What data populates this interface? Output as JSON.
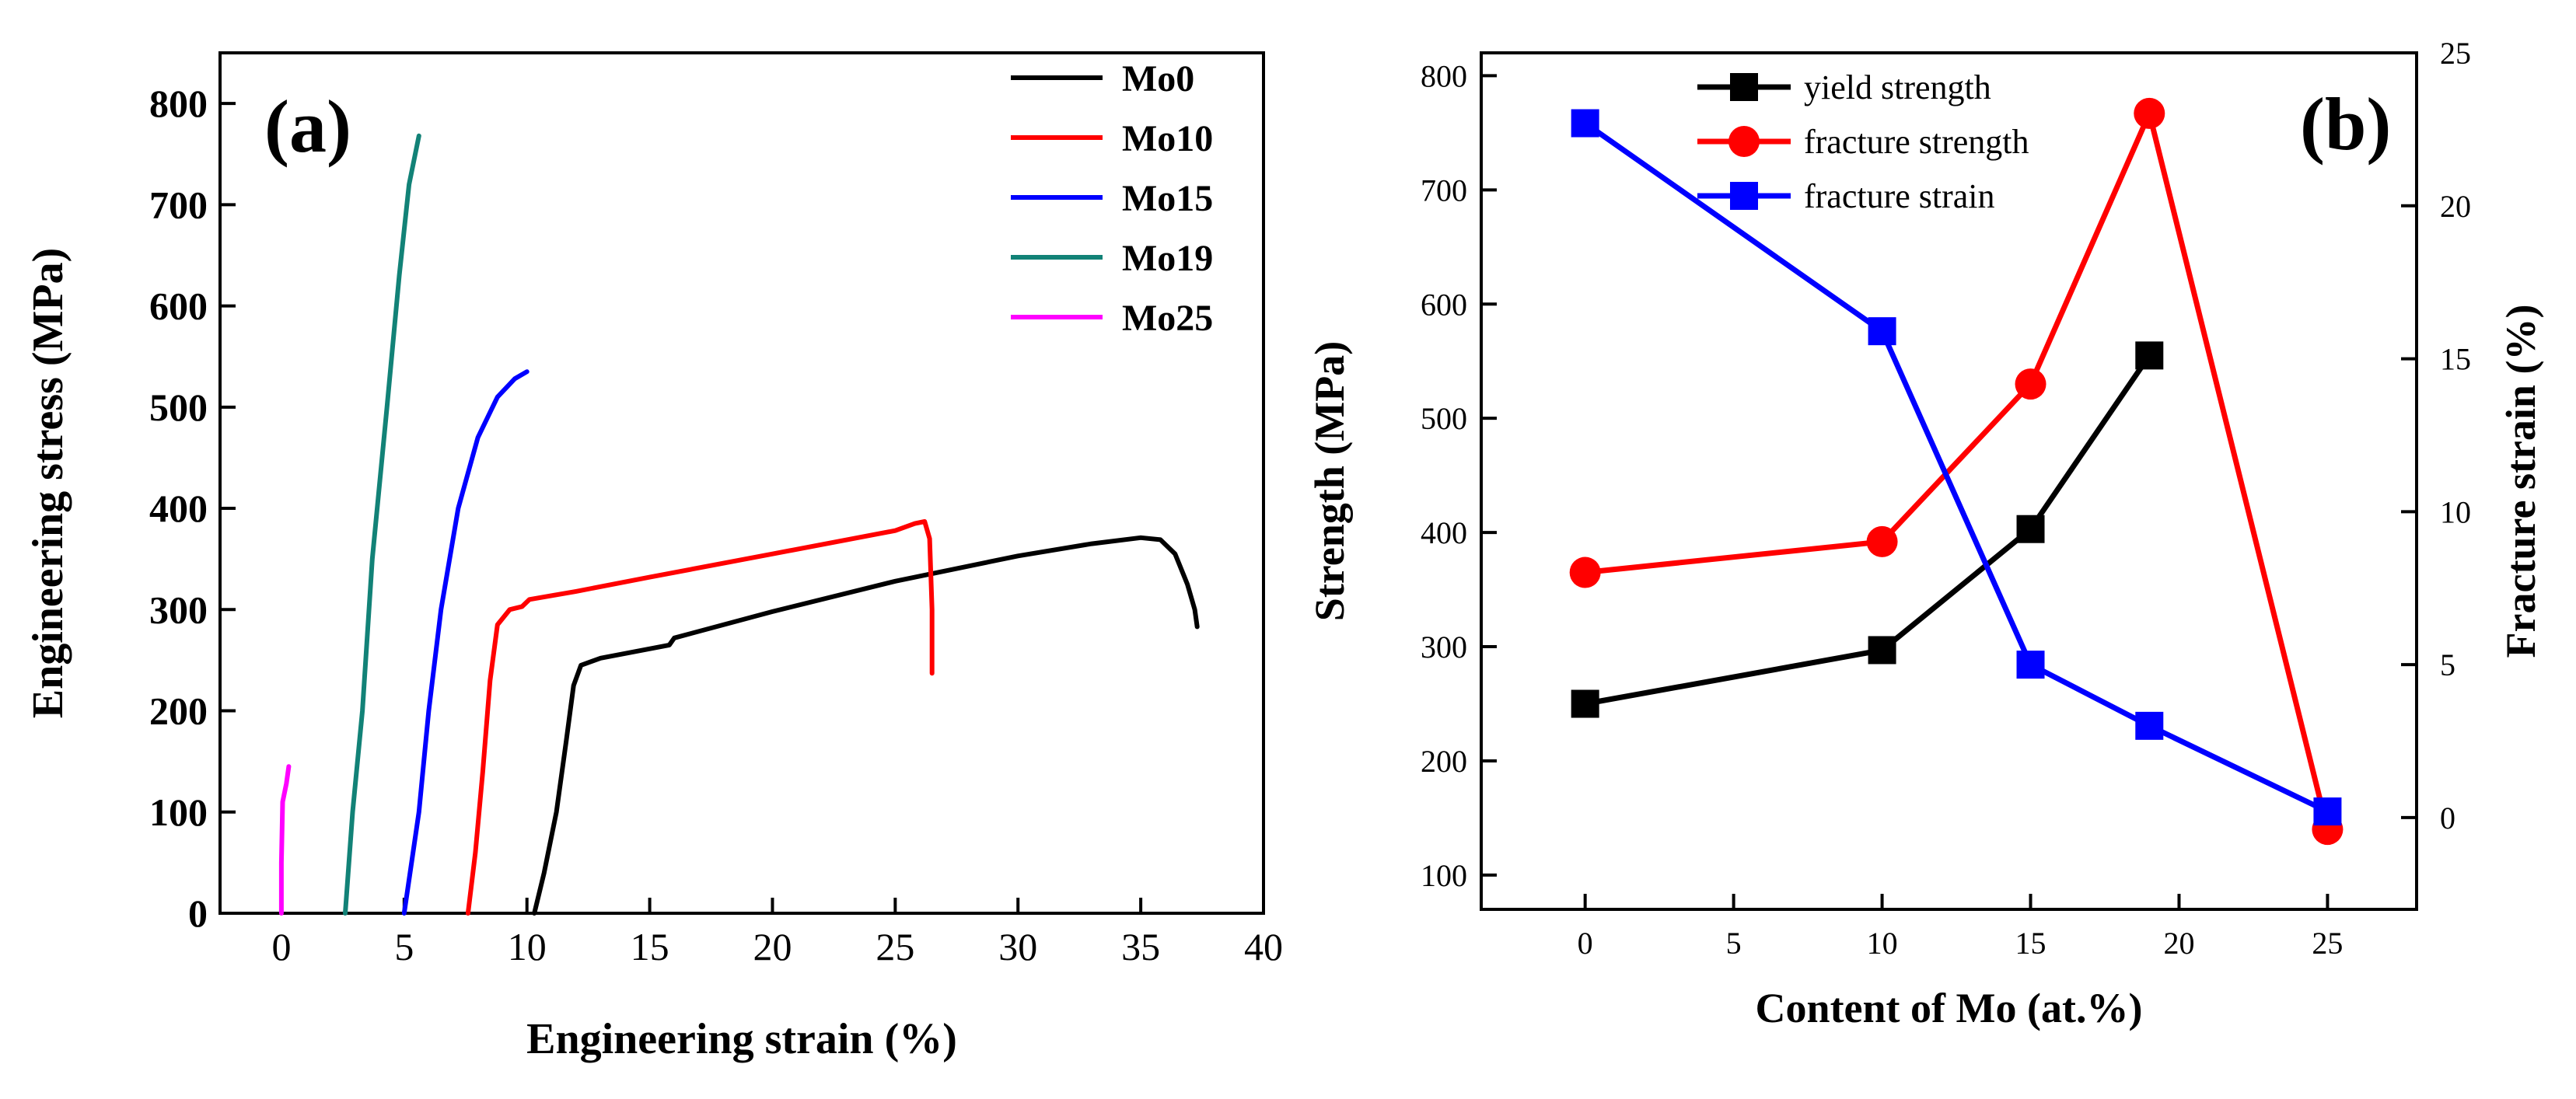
{
  "chart_data": [
    {
      "id": "a",
      "type": "line",
      "panel_label": "(a)",
      "xlabel": "Engineering strain (%)",
      "ylabel": "Engineering stress (MPa)",
      "xlim": [
        -2.5,
        40
      ],
      "ylim": [
        0,
        850
      ],
      "xticks": [
        0,
        5,
        10,
        15,
        20,
        25,
        30,
        35,
        40
      ],
      "yticks": [
        0,
        100,
        200,
        300,
        400,
        500,
        600,
        700,
        800
      ],
      "legend_position": "top-right",
      "series": [
        {
          "name": "Mo0",
          "color": "#000000",
          "points": [
            [
              10.3,
              0
            ],
            [
              10.7,
              40
            ],
            [
              11.2,
              100
            ],
            [
              11.6,
              170
            ],
            [
              11.9,
              225
            ],
            [
              12.2,
              245
            ],
            [
              13,
              252
            ],
            [
              15.8,
              265
            ],
            [
              16,
              272
            ],
            [
              20,
              298
            ],
            [
              25,
              328
            ],
            [
              30,
              353
            ],
            [
              33,
              365
            ],
            [
              35,
              371
            ],
            [
              35.8,
              369
            ],
            [
              36.4,
              355
            ],
            [
              36.9,
              325
            ],
            [
              37.2,
              300
            ],
            [
              37.3,
              283
            ]
          ]
        },
        {
          "name": "Mo10",
          "color": "#ff0000",
          "points": [
            [
              7.6,
              0
            ],
            [
              7.9,
              60
            ],
            [
              8.2,
              140
            ],
            [
              8.5,
              230
            ],
            [
              8.8,
              285
            ],
            [
              9.3,
              300
            ],
            [
              9.8,
              303
            ],
            [
              10.1,
              310
            ],
            [
              12,
              318
            ],
            [
              15,
              332
            ],
            [
              20,
              355
            ],
            [
              25,
              378
            ],
            [
              25.8,
              385
            ],
            [
              26.2,
              387
            ],
            [
              26.4,
              370
            ],
            [
              26.5,
              300
            ],
            [
              26.5,
              237
            ]
          ]
        },
        {
          "name": "Mo15",
          "color": "#0000ff",
          "points": [
            [
              5,
              0
            ],
            [
              5.3,
              50
            ],
            [
              5.6,
              100
            ],
            [
              6,
              200
            ],
            [
              6.5,
              300
            ],
            [
              7.2,
              400
            ],
            [
              8,
              470
            ],
            [
              8.8,
              510
            ],
            [
              9.5,
              528
            ],
            [
              10,
              535
            ]
          ]
        },
        {
          "name": "Mo19",
          "color": "#128277",
          "points": [
            [
              2.6,
              0
            ],
            [
              2.9,
              100
            ],
            [
              3.3,
              200
            ],
            [
              3.7,
              350
            ],
            [
              4.3,
              500
            ],
            [
              4.8,
              630
            ],
            [
              5.2,
              720
            ],
            [
              5.6,
              768
            ]
          ]
        },
        {
          "name": "Mo25",
          "color": "#ff00ff",
          "points": [
            [
              0,
              0
            ],
            [
              0,
              50
            ],
            [
              0.05,
              110
            ],
            [
              0.2,
              128
            ],
            [
              0.3,
              145
            ]
          ]
        }
      ]
    },
    {
      "id": "b",
      "type": "line",
      "panel_label": "(b)",
      "xlabel": "Content of Mo (at.%)",
      "ylabel": "Strength (MPa)",
      "y2label": "Fracture strain (%)",
      "xlim": [
        -3.5,
        28
      ],
      "ylim": [
        70,
        820
      ],
      "y2lim": [
        -3,
        25
      ],
      "xticks": [
        0,
        5,
        10,
        15,
        20,
        25
      ],
      "yticks": [
        100,
        200,
        300,
        400,
        500,
        600,
        700,
        800
      ],
      "y2ticks": [
        0,
        5,
        10,
        15,
        20,
        25
      ],
      "legend_position": "top-left",
      "series": [
        {
          "name": "yield strength",
          "color": "#000000",
          "marker": "square",
          "axis": "left",
          "x": [
            0,
            10,
            15,
            19
          ],
          "values": [
            250,
            297,
            403,
            555
          ]
        },
        {
          "name": "fracture strength",
          "color": "#ff0000",
          "marker": "circle",
          "axis": "left",
          "x": [
            0,
            10,
            15,
            19,
            25
          ],
          "values": [
            365,
            392,
            530,
            767,
            140
          ]
        },
        {
          "name": "fracture strain",
          "color": "#0000ff",
          "marker": "square",
          "axis": "right",
          "x": [
            0,
            10,
            15,
            19,
            25
          ],
          "values": [
            22.7,
            15.9,
            5.0,
            3.0,
            0.2
          ]
        }
      ]
    }
  ]
}
